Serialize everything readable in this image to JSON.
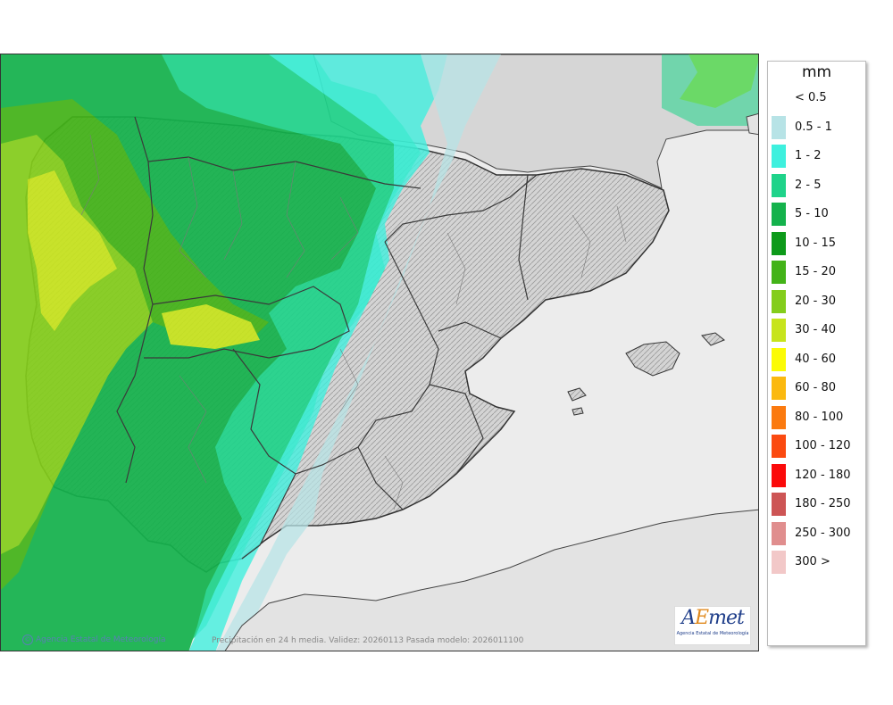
{
  "map": {
    "credit_left": "Agencia Estatal de Meteorología",
    "credit_center": "Precipitación en 24 h media. Validez: 20260113 Pasada modelo: 2026011100",
    "logo_text": "AEmet",
    "logo_subtext": "Agencia Estatal de Meteorología",
    "colors": {
      "sea": "#ececec",
      "land_relief": "#d2d2d2",
      "border": "#3a3a3a"
    }
  },
  "legend": {
    "title": "mm",
    "items": [
      {
        "label": "< 0.5",
        "color": "#ffffff"
      },
      {
        "label": "0.5 - 1",
        "color": "#b7e3e6"
      },
      {
        "label": "1 - 2",
        "color": "#3ef0de"
      },
      {
        "label": "2 - 5",
        "color": "#1fd38a"
      },
      {
        "label": "5 - 10",
        "color": "#14b24c"
      },
      {
        "label": "10 - 15",
        "color": "#0d9a1a"
      },
      {
        "label": "15 - 20",
        "color": "#43b318"
      },
      {
        "label": "20 - 30",
        "color": "#84cd1b"
      },
      {
        "label": "30 - 40",
        "color": "#c7e41d"
      },
      {
        "label": "40 - 60",
        "color": "#fbfb06"
      },
      {
        "label": "60 - 80",
        "color": "#fbb90f"
      },
      {
        "label": "80 - 100",
        "color": "#fb7a0f"
      },
      {
        "label": "100 - 120",
        "color": "#fb4a10"
      },
      {
        "label": "120 - 180",
        "color": "#fb0a0a"
      },
      {
        "label": "180 - 250",
        "color": "#cd5555"
      },
      {
        "label": "250 - 300",
        "color": "#e08e8e"
      },
      {
        "label": "300 >",
        "color": "#f2c8c8"
      }
    ]
  }
}
